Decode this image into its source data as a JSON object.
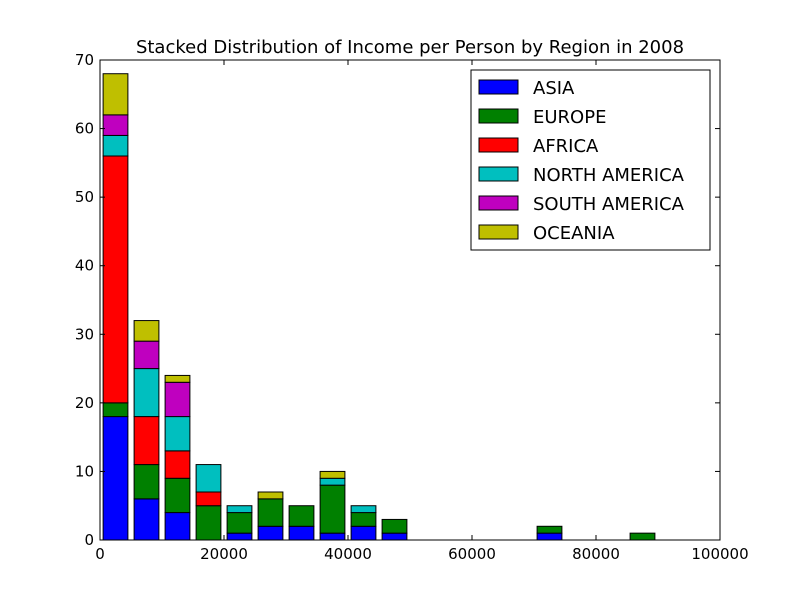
{
  "chart_data": {
    "type": "bar",
    "stacked": true,
    "title": "Stacked Distribution of Income per Person by Region in 2008",
    "xlabel": "",
    "ylabel": "",
    "xlim": [
      0,
      100000
    ],
    "ylim": [
      0,
      70
    ],
    "xticks": [
      0,
      20000,
      40000,
      60000,
      80000,
      100000
    ],
    "xtick_labels": [
      "0",
      "20000",
      "40000",
      "60000",
      "80000",
      "100000"
    ],
    "yticks": [
      0,
      10,
      20,
      30,
      40,
      50,
      60,
      70
    ],
    "ytick_labels": [
      "0",
      "10",
      "20",
      "30",
      "40",
      "50",
      "60",
      "70"
    ],
    "grid": false,
    "legend_position": "top-right",
    "bin_centers": [
      2500,
      7500,
      12500,
      17500,
      22500,
      27500,
      32500,
      37500,
      42500,
      47500,
      52500,
      57500,
      62500,
      67500,
      72500,
      77500,
      82500,
      87500,
      92500,
      97500
    ],
    "bin_width": 5000,
    "bar_width_fraction": 0.8,
    "series": [
      {
        "name": "ASIA",
        "color": "#0000ff",
        "values": [
          18,
          6,
          4,
          0,
          1,
          2,
          2,
          1,
          2,
          1,
          0,
          0,
          0,
          0,
          1,
          0,
          0,
          0,
          0,
          0
        ]
      },
      {
        "name": "EUROPE",
        "color": "#008000",
        "values": [
          2,
          5,
          5,
          5,
          3,
          4,
          3,
          7,
          2,
          2,
          0,
          0,
          0,
          0,
          1,
          0,
          0,
          1,
          0,
          0
        ]
      },
      {
        "name": "AFRICA",
        "color": "#ff0000",
        "values": [
          36,
          7,
          4,
          2,
          0,
          0,
          0,
          0,
          0,
          0,
          0,
          0,
          0,
          0,
          0,
          0,
          0,
          0,
          0,
          0
        ]
      },
      {
        "name": "NORTH AMERICA",
        "color": "#00bfbf",
        "values": [
          3,
          7,
          5,
          4,
          1,
          0,
          0,
          1,
          1,
          0,
          0,
          0,
          0,
          0,
          0,
          0,
          0,
          0,
          0,
          0
        ]
      },
      {
        "name": "SOUTH AMERICA",
        "color": "#bf00bf",
        "values": [
          3,
          4,
          5,
          0,
          0,
          0,
          0,
          0,
          0,
          0,
          0,
          0,
          0,
          0,
          0,
          0,
          0,
          0,
          0,
          0
        ]
      },
      {
        "name": "OCEANIA",
        "color": "#bfbf00",
        "values": [
          6,
          3,
          1,
          0,
          0,
          1,
          0,
          1,
          0,
          0,
          0,
          0,
          0,
          0,
          0,
          0,
          0,
          0,
          0,
          0
        ]
      }
    ]
  }
}
